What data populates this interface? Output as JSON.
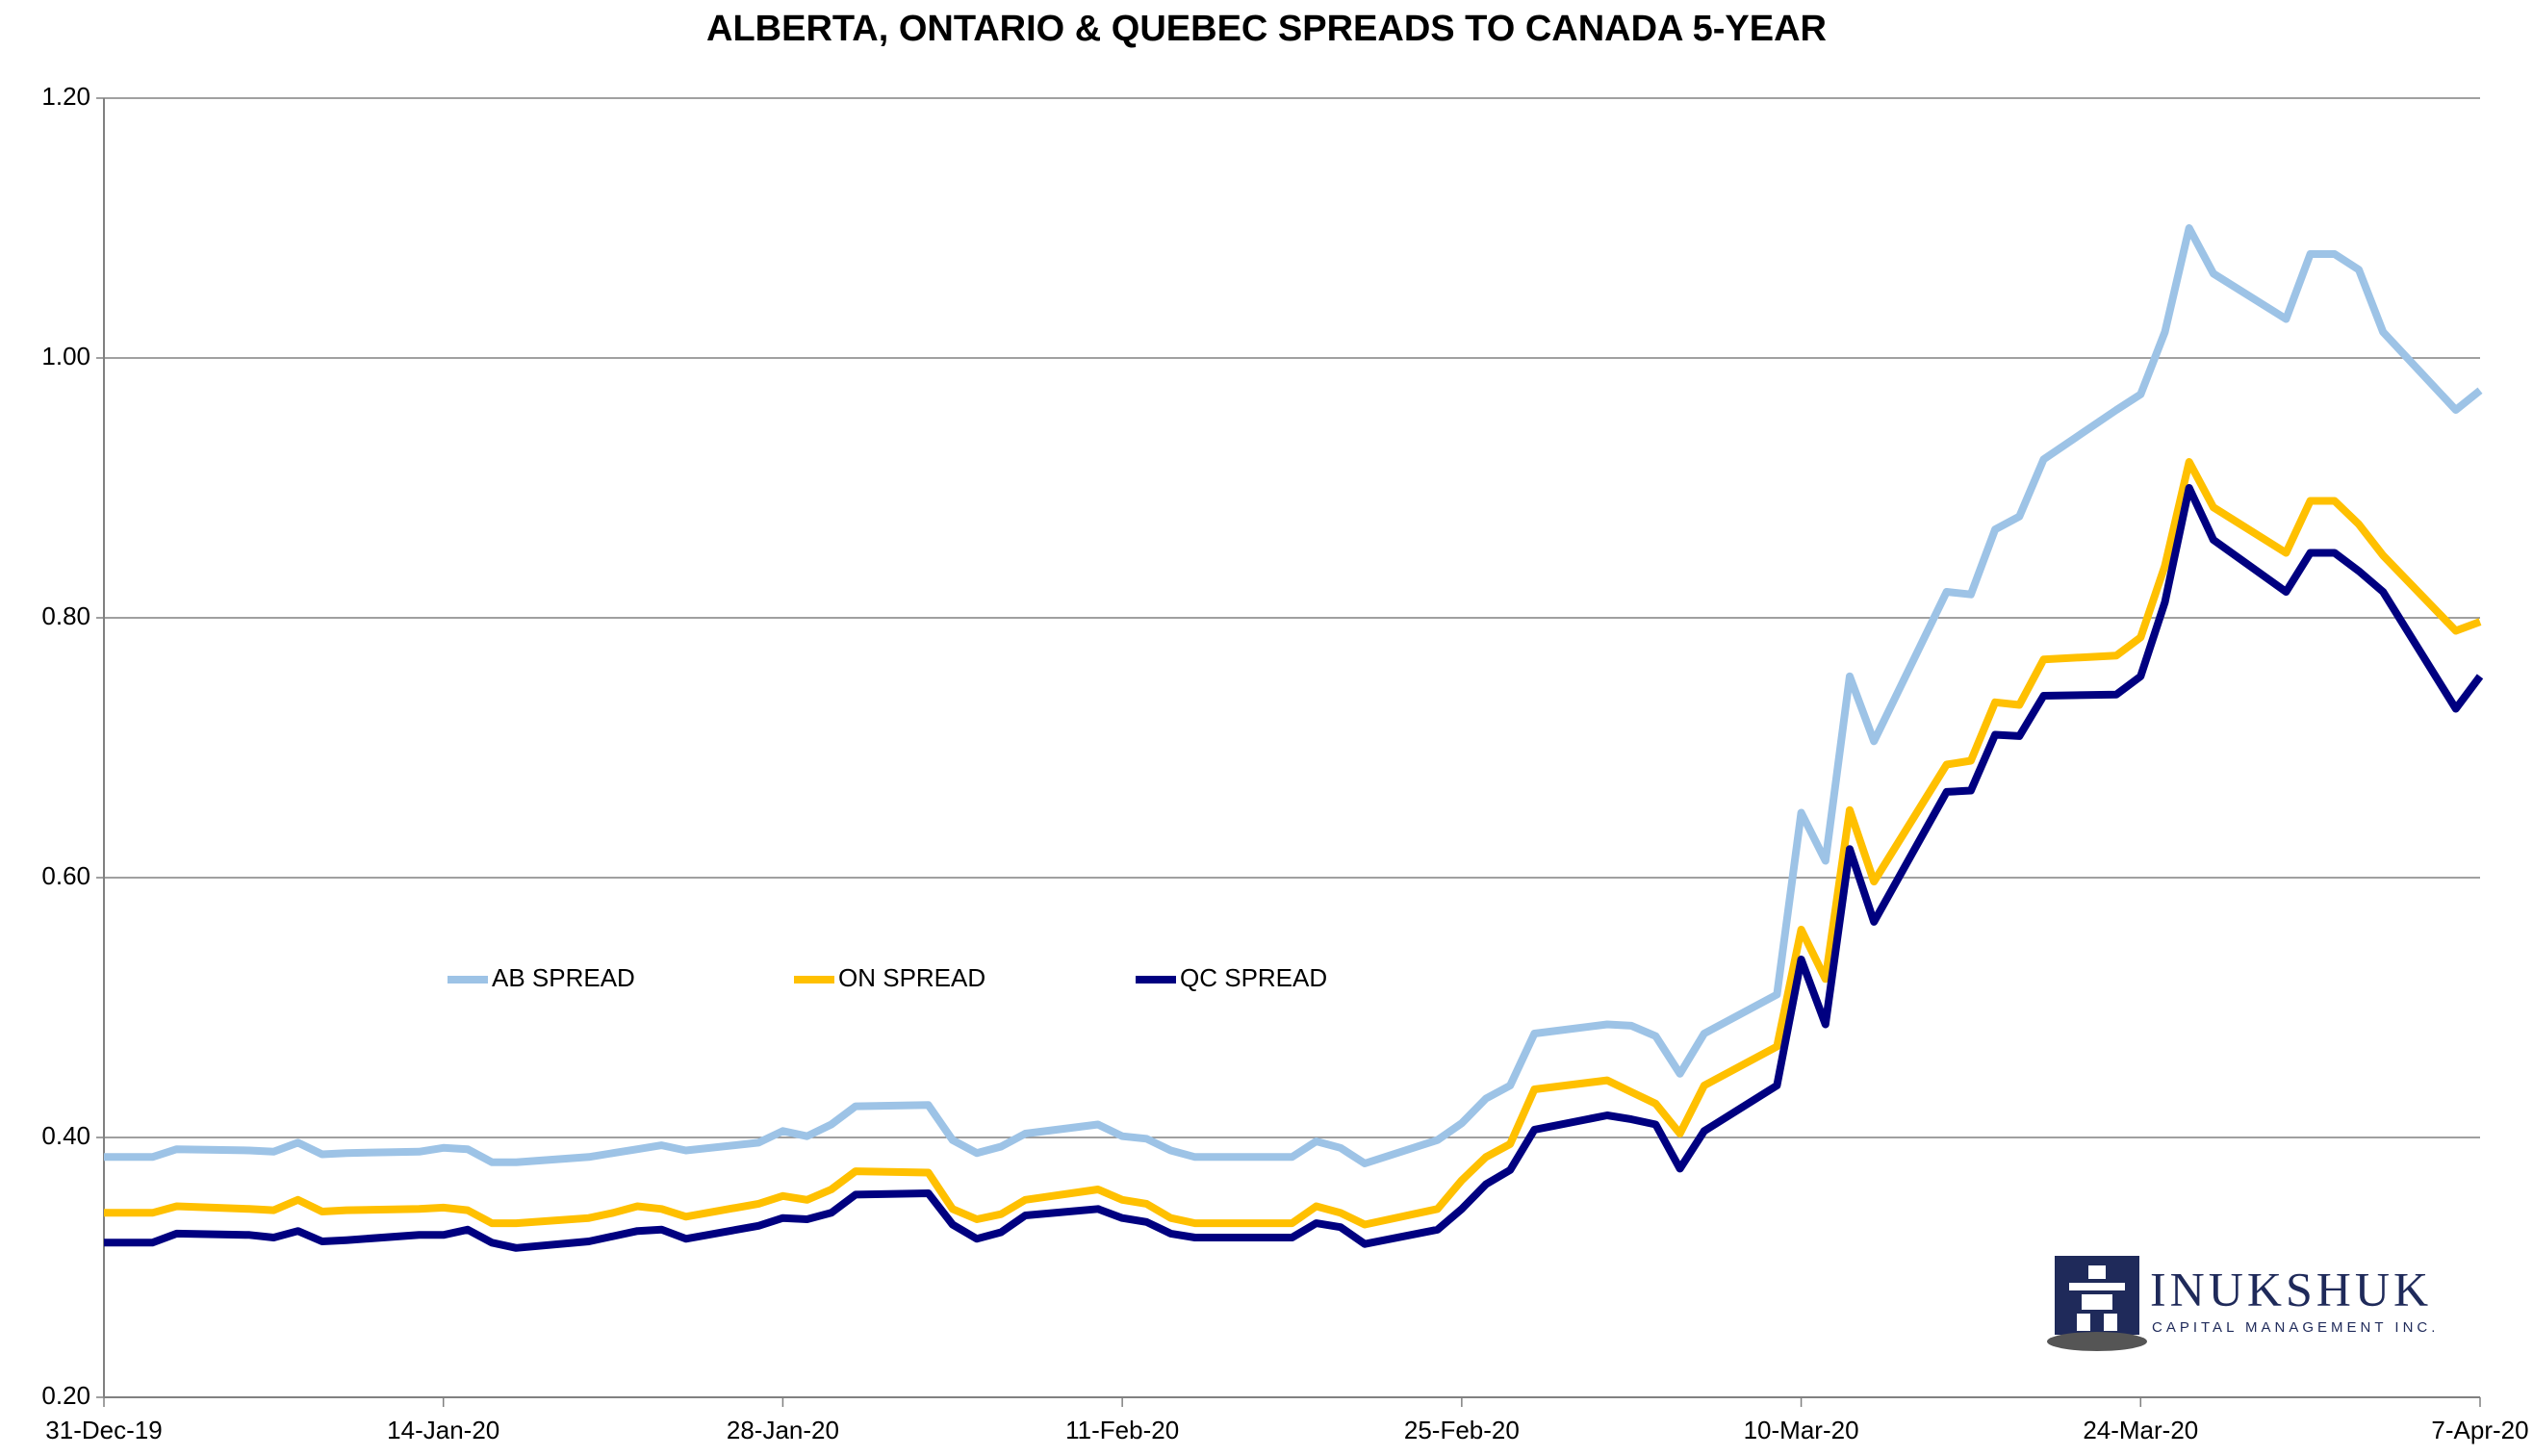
{
  "chart_data": {
    "type": "line",
    "title": "ALBERTA, ONTARIO & QUEBEC SPREADS TO CANADA 5-YEAR",
    "x": [
      "31-Dec-19",
      "2-Jan-20",
      "3-Jan-20",
      "6-Jan-20",
      "7-Jan-20",
      "8-Jan-20",
      "9-Jan-20",
      "10-Jan-20",
      "13-Jan-20",
      "14-Jan-20",
      "15-Jan-20",
      "16-Jan-20",
      "17-Jan-20",
      "20-Jan-20",
      "21-Jan-20",
      "22-Jan-20",
      "23-Jan-20",
      "24-Jan-20",
      "27-Jan-20",
      "28-Jan-20",
      "29-Jan-20",
      "30-Jan-20",
      "31-Jan-20",
      "3-Feb-20",
      "4-Feb-20",
      "5-Feb-20",
      "6-Feb-20",
      "7-Feb-20",
      "10-Feb-20",
      "11-Feb-20",
      "12-Feb-20",
      "13-Feb-20",
      "14-Feb-20",
      "18-Feb-20",
      "19-Feb-20",
      "20-Feb-20",
      "21-Feb-20",
      "24-Feb-20",
      "25-Feb-20",
      "26-Feb-20",
      "27-Feb-20",
      "28-Feb-20",
      "2-Mar-20",
      "3-Mar-20",
      "4-Mar-20",
      "5-Mar-20",
      "6-Mar-20",
      "9-Mar-20",
      "10-Mar-20",
      "11-Mar-20",
      "12-Mar-20",
      "13-Mar-20",
      "16-Mar-20",
      "17-Mar-20",
      "18-Mar-20",
      "19-Mar-20",
      "20-Mar-20",
      "23-Mar-20",
      "24-Mar-20",
      "25-Mar-20",
      "26-Mar-20",
      "27-Mar-20",
      "30-Mar-20",
      "31-Mar-20",
      "1-Apr-20",
      "2-Apr-20",
      "3-Apr-20",
      "6-Apr-20",
      "7-Apr-20"
    ],
    "series": [
      {
        "name": "AB SPREAD",
        "color": "#9dc3e6",
        "values": [
          0.385,
          0.385,
          0.391,
          0.39,
          0.389,
          0.396,
          0.387,
          0.388,
          0.389,
          0.392,
          0.391,
          0.381,
          0.381,
          0.385,
          0.388,
          0.391,
          0.394,
          0.39,
          0.396,
          0.405,
          0.401,
          0.41,
          0.424,
          0.425,
          0.398,
          0.388,
          0.393,
          0.403,
          0.41,
          0.401,
          0.399,
          0.39,
          0.385,
          0.385,
          0.397,
          0.392,
          0.38,
          0.398,
          0.411,
          0.43,
          0.44,
          0.48,
          0.487,
          0.486,
          0.478,
          0.449,
          0.48,
          0.51,
          0.65,
          0.613,
          0.755,
          0.705,
          0.82,
          0.818,
          0.868,
          0.878,
          0.922,
          0.96,
          0.972,
          1.02,
          1.1,
          1.065,
          1.03,
          1.08,
          1.08,
          1.068,
          1.02,
          0.96,
          0.975
        ]
      },
      {
        "name": "ON SPREAD",
        "color": "#ffc000",
        "values": [
          0.342,
          0.342,
          0.347,
          0.345,
          0.344,
          0.352,
          0.343,
          0.344,
          0.345,
          0.346,
          0.344,
          0.334,
          0.334,
          0.338,
          0.342,
          0.347,
          0.345,
          0.339,
          0.349,
          0.355,
          0.352,
          0.36,
          0.374,
          0.373,
          0.345,
          0.337,
          0.341,
          0.352,
          0.36,
          0.352,
          0.349,
          0.338,
          0.334,
          0.334,
          0.347,
          0.342,
          0.333,
          0.345,
          0.367,
          0.385,
          0.395,
          0.437,
          0.444,
          0.435,
          0.426,
          0.403,
          0.44,
          0.47,
          0.56,
          0.522,
          0.652,
          0.597,
          0.687,
          0.69,
          0.735,
          0.733,
          0.768,
          0.771,
          0.785,
          0.84,
          0.92,
          0.885,
          0.85,
          0.89,
          0.89,
          0.872,
          0.848,
          0.79,
          0.797
        ]
      },
      {
        "name": "QC SPREAD",
        "color": "#000080",
        "values": [
          0.319,
          0.319,
          0.326,
          0.325,
          0.323,
          0.328,
          0.32,
          0.321,
          0.325,
          0.325,
          0.329,
          0.319,
          0.315,
          0.32,
          0.324,
          0.328,
          0.329,
          0.322,
          0.332,
          0.338,
          0.337,
          0.342,
          0.356,
          0.357,
          0.333,
          0.322,
          0.327,
          0.34,
          0.345,
          0.338,
          0.335,
          0.326,
          0.323,
          0.323,
          0.334,
          0.331,
          0.318,
          0.329,
          0.345,
          0.364,
          0.375,
          0.406,
          0.417,
          0.414,
          0.41,
          0.376,
          0.405,
          0.44,
          0.537,
          0.487,
          0.622,
          0.566,
          0.666,
          0.667,
          0.71,
          0.709,
          0.74,
          0.741,
          0.755,
          0.812,
          0.9,
          0.86,
          0.82,
          0.85,
          0.85,
          0.836,
          0.82,
          0.73,
          0.755
        ]
      }
    ],
    "xlim": [
      "31-Dec-19",
      "7-Apr-20"
    ],
    "xticks": [
      "31-Dec-19",
      "14-Jan-20",
      "28-Jan-20",
      "11-Feb-20",
      "25-Feb-20",
      "10-Mar-20",
      "24-Mar-20",
      "7-Apr-20"
    ],
    "ylim": [
      0.2,
      1.2
    ],
    "yticks": [
      {
        "value": 0.2,
        "label": "0.20"
      },
      {
        "value": 0.4,
        "label": "0.40"
      },
      {
        "value": 0.6,
        "label": "0.60"
      },
      {
        "value": 0.8,
        "label": "0.80"
      },
      {
        "value": 1.0,
        "label": "1.00"
      },
      {
        "value": 1.2,
        "label": "1.20"
      }
    ],
    "grid": true,
    "logo": {
      "name": "INUKSHUK",
      "tagline": "CAPITAL MANAGEMENT INC."
    }
  }
}
